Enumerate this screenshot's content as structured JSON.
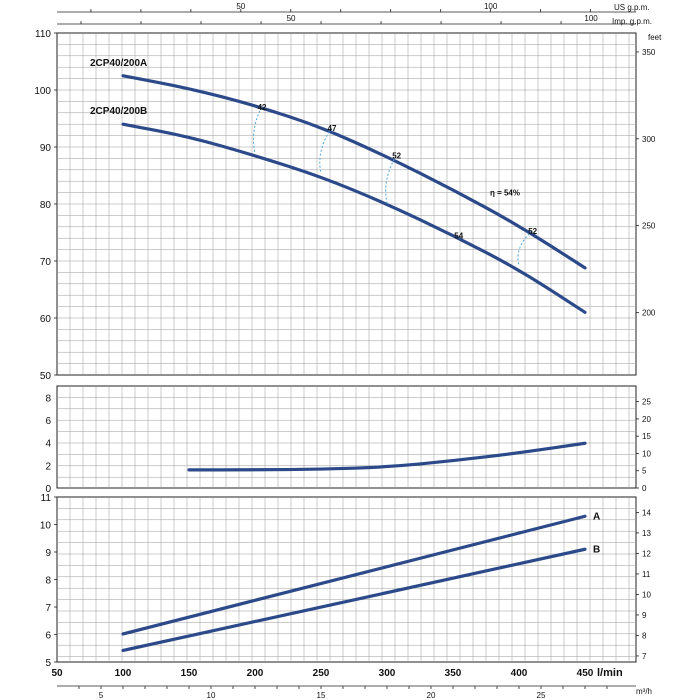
{
  "chart_data": [
    {
      "type": "line",
      "panel": "head",
      "title": "",
      "xlabel": "l/min",
      "ylabel": "",
      "right_axis_unit": "feet",
      "xlim": [
        50,
        470
      ],
      "ylim": [
        50,
        110
      ],
      "yticks": [
        "50",
        "60",
        "70",
        "80",
        "90",
        "100",
        "110"
      ],
      "right_ticks": [
        "200",
        "250",
        "300",
        "350"
      ],
      "series": [
        {
          "name": "2CP40/200A",
          "x": [
            100,
            150,
            200,
            250,
            300,
            350,
            400,
            450
          ],
          "y": [
            102.5,
            100.3,
            97.3,
            93.5,
            88.3,
            82.5,
            76.2,
            68.8
          ]
        },
        {
          "name": "2CP40/200B",
          "x": [
            100,
            150,
            200,
            250,
            300,
            350,
            400,
            450
          ],
          "y": [
            94.0,
            91.8,
            88.5,
            84.8,
            80.0,
            74.5,
            68.5,
            61.0
          ]
        }
      ],
      "efficiency_label": "η = 54%",
      "annotations": [
        {
          "text": "42",
          "x": 205,
          "y": 97
        },
        {
          "text": "47",
          "x": 258,
          "y": 93.3
        },
        {
          "text": "52",
          "x": 307,
          "y": 88.5
        },
        {
          "text": "52",
          "x": 410,
          "y": 75.3
        },
        {
          "text": "54",
          "x": 354,
          "y": 74.5
        }
      ]
    },
    {
      "type": "line",
      "panel": "npsh",
      "xlim": [
        50,
        470
      ],
      "ylim": [
        0,
        9
      ],
      "yticks": [
        "0",
        "2",
        "4",
        "6",
        "8"
      ],
      "right_ticks": [
        "0",
        "5",
        "10",
        "15",
        "20",
        "25"
      ],
      "series": [
        {
          "x": [
            150,
            200,
            250,
            300,
            350,
            400,
            450
          ],
          "y": [
            1.6,
            1.6,
            1.65,
            1.85,
            2.4,
            3.1,
            3.95
          ]
        }
      ]
    },
    {
      "type": "line",
      "panel": "power",
      "xlim": [
        50,
        470
      ],
      "ylim": [
        5,
        11
      ],
      "yticks": [
        "5",
        "6",
        "7",
        "8",
        "9",
        "10",
        "11"
      ],
      "right_ticks": [
        "7",
        "8",
        "9",
        "10",
        "11",
        "12",
        "13",
        "14"
      ],
      "xticks": [
        "50",
        "100",
        "150",
        "200",
        "250",
        "300",
        "350",
        "400",
        "450"
      ],
      "series": [
        {
          "name": "A",
          "x": [
            100,
            450
          ],
          "y": [
            6.02,
            10.3
          ]
        },
        {
          "name": "B",
          "x": [
            100,
            450
          ],
          "y": [
            5.42,
            9.1
          ]
        }
      ],
      "series_labels": [
        "A",
        "B"
      ]
    }
  ],
  "top_axes": {
    "us_label": "US g.p.m.",
    "us_ticks": [
      {
        "value": 50,
        "label": "50"
      },
      {
        "value": 100,
        "label": "100"
      }
    ],
    "imp_label": "Imp. g.p.m.",
    "imp_ticks": [
      {
        "value": 50,
        "label": "50"
      },
      {
        "value": 100,
        "label": "100"
      }
    ]
  },
  "bottom_axis": {
    "unit": "m³/h",
    "ticks": [
      "5",
      "10",
      "15",
      "20",
      "25"
    ]
  },
  "colors": {
    "curve": "#2c4a8a",
    "grid": "#9a9a9a",
    "dashed": "#4da6d9"
  }
}
